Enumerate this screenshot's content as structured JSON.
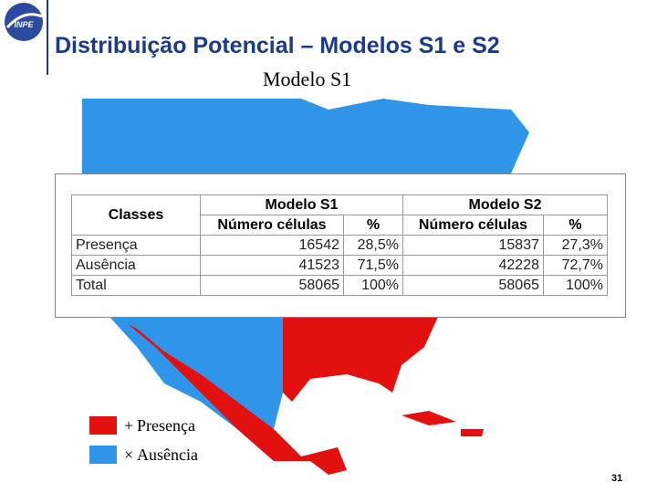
{
  "header": {
    "title": "Distribuição Potencial – Modelos S1 e S2",
    "logo": "INPE"
  },
  "map": {
    "title": "Modelo S1",
    "legend": [
      "Presença",
      "Ausência"
    ]
  },
  "table": {
    "head": [
      "Classes",
      "Modelo S1",
      "Modelo S2"
    ],
    "subhead": [
      "Número células",
      "%",
      "Número células",
      "%"
    ],
    "rows": [
      [
        "Presença",
        16542,
        "28,5%",
        15837,
        "27,3%"
      ],
      [
        "Ausência",
        41523,
        "71,5%",
        42228,
        "72,7%"
      ],
      [
        "Total",
        58065,
        "100%",
        58065,
        "100%"
      ]
    ]
  },
  "footer": {
    "page": "31"
  }
}
